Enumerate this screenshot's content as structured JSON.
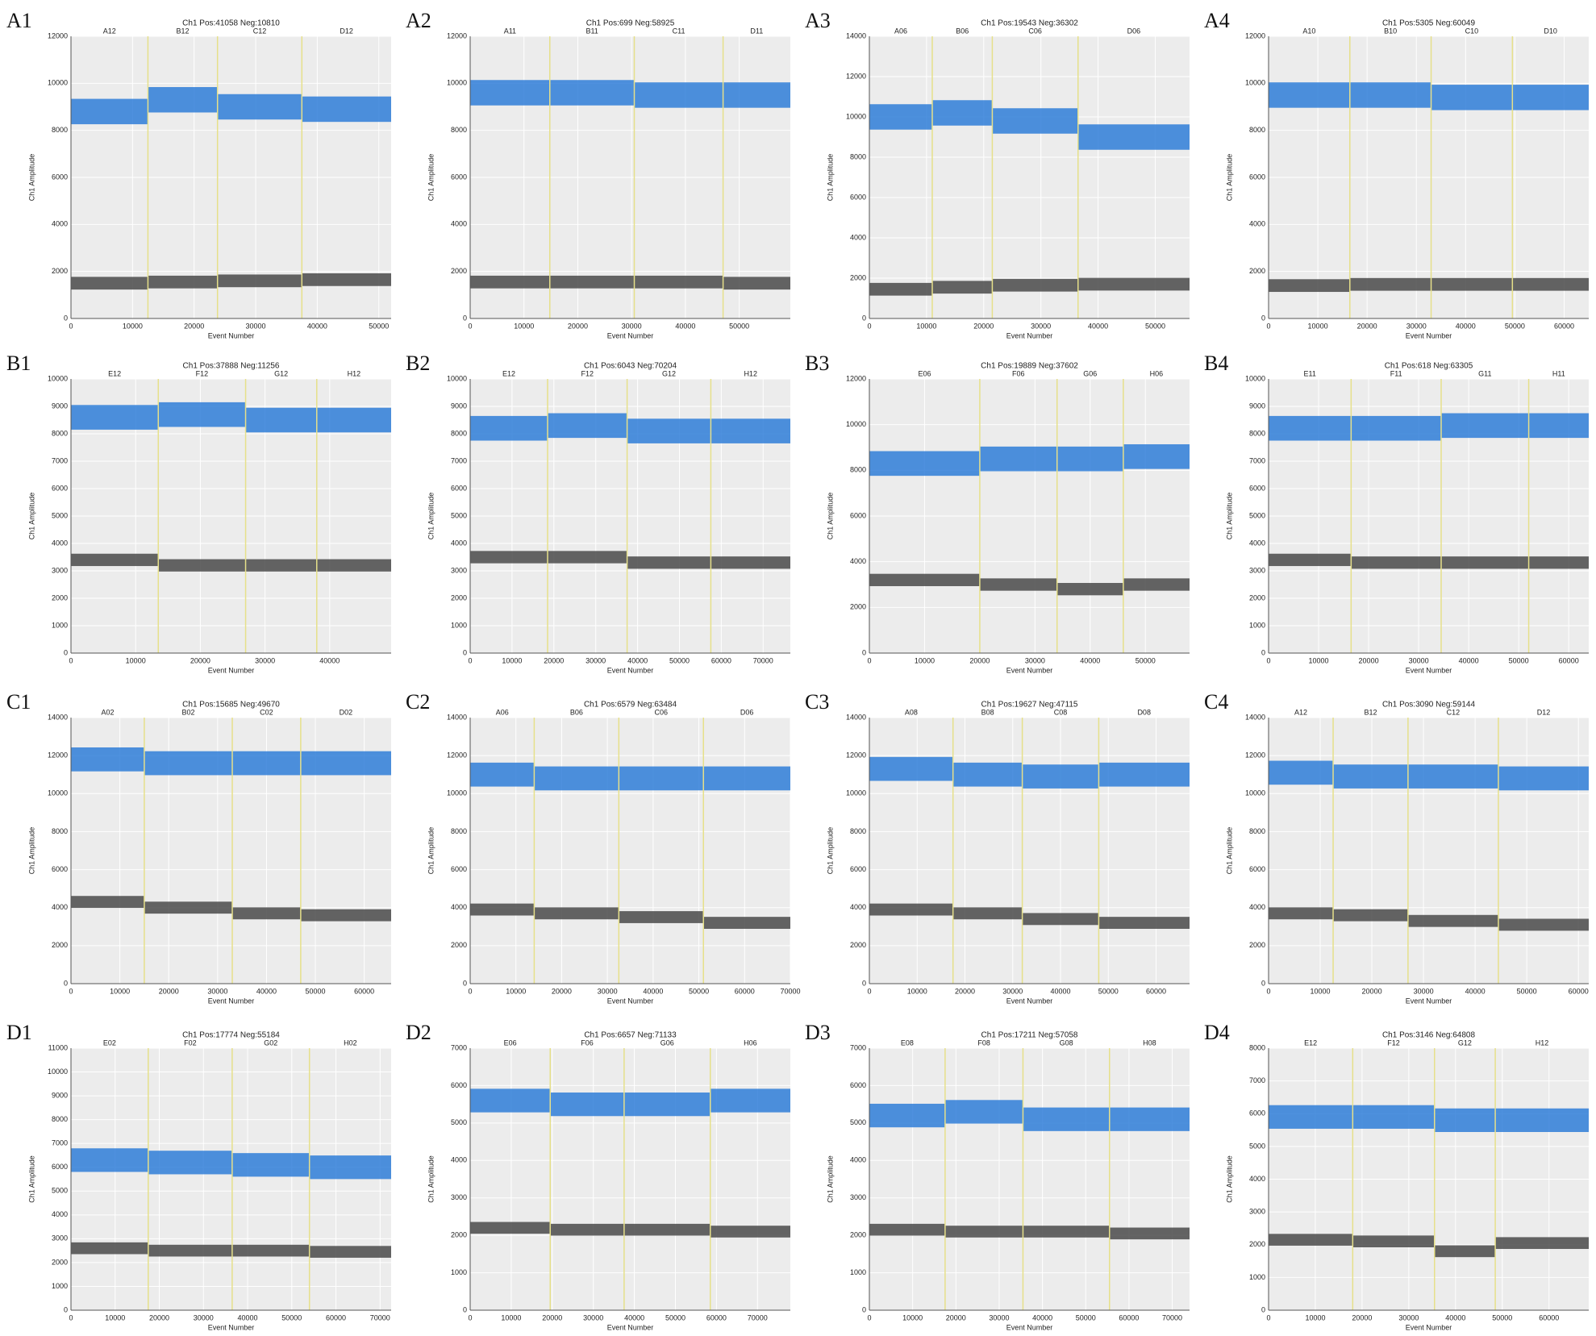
{
  "chart_data": [
    {
      "type": "droplet",
      "label": "A1",
      "title": "Ch1 Pos:41058 Neg:10810",
      "xlabel": "Event Number",
      "ylabel": "Ch1 Amplitude",
      "categories": [
        "A12",
        "B12",
        "C12",
        "D12"
      ],
      "well_edges": [
        0,
        12500,
        23800,
        37500,
        52000
      ],
      "series": [
        {
          "color": "#2f7ed8",
          "values": [
            8800,
            9300,
            9000,
            8900
          ]
        },
        {
          "color": "#4a4a4a",
          "values": [
            1500,
            1550,
            1600,
            1650
          ]
        }
      ],
      "xlim": [
        0,
        52000
      ],
      "xticks": [
        0,
        10000,
        20000,
        30000,
        40000,
        50000
      ],
      "ylim": [
        0,
        12000
      ],
      "yticks": [
        0,
        2000,
        4000,
        6000,
        8000,
        10000,
        12000
      ]
    },
    {
      "type": "droplet",
      "label": "A2",
      "title": "Ch1 Pos:699 Neg:58925",
      "xlabel": "Event Number",
      "ylabel": "Ch1 Amplitude",
      "categories": [
        "A11",
        "B11",
        "C11",
        "D11"
      ],
      "well_edges": [
        0,
        14800,
        30500,
        47000,
        59500
      ],
      "series": [
        {
          "color": "#2f7ed8",
          "values": [
            9600,
            9600,
            9500,
            9500
          ]
        },
        {
          "color": "#4a4a4a",
          "values": [
            1550,
            1550,
            1550,
            1500
          ]
        }
      ],
      "xlim": [
        0,
        59500
      ],
      "xticks": [
        0,
        10000,
        20000,
        30000,
        40000,
        50000
      ],
      "ylim": [
        0,
        12000
      ],
      "yticks": [
        0,
        2000,
        4000,
        6000,
        8000,
        10000,
        12000
      ]
    },
    {
      "type": "droplet",
      "label": "A3",
      "title": "Ch1 Pos:19543 Neg:36302",
      "xlabel": "Event Number",
      "ylabel": "Ch1 Amplitude",
      "categories": [
        "A06",
        "B06",
        "C06",
        "D06"
      ],
      "well_edges": [
        0,
        11000,
        21500,
        36500,
        56000
      ],
      "series": [
        {
          "color": "#2f7ed8",
          "values": [
            10000,
            10200,
            9800,
            9000
          ]
        },
        {
          "color": "#4a4a4a",
          "values": [
            1450,
            1550,
            1650,
            1700
          ]
        }
      ],
      "xlim": [
        0,
        56000
      ],
      "xticks": [
        0,
        10000,
        20000,
        30000,
        40000,
        50000
      ],
      "ylim": [
        0,
        14000
      ],
      "yticks": [
        0,
        2000,
        4000,
        6000,
        8000,
        10000,
        12000,
        14000
      ]
    },
    {
      "type": "droplet",
      "label": "A4",
      "title": "Ch1 Pos:5305 Neg:60049",
      "xlabel": "Event Number",
      "ylabel": "Ch1 Amplitude",
      "categories": [
        "A10",
        "B10",
        "C10",
        "D10"
      ],
      "well_edges": [
        0,
        16500,
        33000,
        49500,
        65000
      ],
      "series": [
        {
          "color": "#2f7ed8",
          "values": [
            9500,
            9500,
            9400,
            9400
          ]
        },
        {
          "color": "#4a4a4a",
          "values": [
            1400,
            1450,
            1450,
            1450
          ]
        }
      ],
      "xlim": [
        0,
        65000
      ],
      "xticks": [
        0,
        10000,
        20000,
        30000,
        40000,
        50000,
        60000
      ],
      "ylim": [
        0,
        12000
      ],
      "yticks": [
        0,
        2000,
        4000,
        6000,
        8000,
        10000,
        12000
      ]
    },
    {
      "type": "droplet",
      "label": "B1",
      "title": "Ch1 Pos:37888 Neg:11256",
      "xlabel": "Event Number",
      "ylabel": "Ch1 Amplitude",
      "categories": [
        "E12",
        "F12",
        "G12",
        "H12"
      ],
      "well_edges": [
        0,
        13500,
        27000,
        38000,
        49500
      ],
      "series": [
        {
          "color": "#2f7ed8",
          "values": [
            8600,
            8700,
            8500,
            8500
          ]
        },
        {
          "color": "#4a4a4a",
          "values": [
            3400,
            3200,
            3200,
            3200
          ]
        }
      ],
      "xlim": [
        0,
        49500
      ],
      "xticks": [
        0,
        10000,
        20000,
        30000,
        40000
      ],
      "ylim": [
        0,
        10000
      ],
      "yticks": [
        0,
        1000,
        2000,
        3000,
        4000,
        5000,
        6000,
        7000,
        8000,
        9000,
        10000
      ]
    },
    {
      "type": "droplet",
      "label": "B2",
      "title": "Ch1 Pos:6043 Neg:70204",
      "xlabel": "Event Number",
      "ylabel": "Ch1 Amplitude",
      "categories": [
        "E12",
        "F12",
        "G12",
        "H12"
      ],
      "well_edges": [
        0,
        18500,
        37500,
        57500,
        76500
      ],
      "series": [
        {
          "color": "#2f7ed8",
          "values": [
            8200,
            8300,
            8100,
            8100
          ]
        },
        {
          "color": "#4a4a4a",
          "values": [
            3500,
            3500,
            3300,
            3300
          ]
        }
      ],
      "xlim": [
        0,
        76500
      ],
      "xticks": [
        0,
        10000,
        20000,
        30000,
        40000,
        50000,
        60000,
        70000
      ],
      "ylim": [
        0,
        10000
      ],
      "yticks": [
        0,
        1000,
        2000,
        3000,
        4000,
        5000,
        6000,
        7000,
        8000,
        9000,
        10000
      ]
    },
    {
      "type": "droplet",
      "label": "B3",
      "title": "Ch1 Pos:19889 Neg:37602",
      "xlabel": "Event Number",
      "ylabel": "Ch1 Amplitude",
      "categories": [
        "E06",
        "F06",
        "G06",
        "H06"
      ],
      "well_edges": [
        0,
        20000,
        34000,
        46000,
        58000
      ],
      "series": [
        {
          "color": "#2f7ed8",
          "values": [
            8300,
            8500,
            8500,
            8600
          ]
        },
        {
          "color": "#4a4a4a",
          "values": [
            3200,
            3000,
            2800,
            3000
          ]
        }
      ],
      "xlim": [
        0,
        58000
      ],
      "xticks": [
        0,
        10000,
        20000,
        30000,
        40000,
        50000
      ],
      "ylim": [
        0,
        12000
      ],
      "yticks": [
        0,
        2000,
        4000,
        6000,
        8000,
        10000,
        12000
      ]
    },
    {
      "type": "droplet",
      "label": "B4",
      "title": "Ch1 Pos:618 Neg:63305",
      "xlabel": "Event Number",
      "ylabel": "Ch1 Amplitude",
      "categories": [
        "E11",
        "F11",
        "G11",
        "H11"
      ],
      "well_edges": [
        0,
        16500,
        34500,
        52000,
        64000
      ],
      "series": [
        {
          "color": "#2f7ed8",
          "values": [
            8200,
            8200,
            8300,
            8300
          ]
        },
        {
          "color": "#4a4a4a",
          "values": [
            3400,
            3300,
            3300,
            3300
          ]
        }
      ],
      "xlim": [
        0,
        64000
      ],
      "xticks": [
        0,
        10000,
        20000,
        30000,
        40000,
        50000,
        60000
      ],
      "ylim": [
        0,
        10000
      ],
      "yticks": [
        0,
        1000,
        2000,
        3000,
        4000,
        5000,
        6000,
        7000,
        8000,
        9000,
        10000
      ]
    },
    {
      "type": "droplet",
      "label": "C1",
      "title": "Ch1 Pos:15685 Neg:49670",
      "xlabel": "Event Number",
      "ylabel": "Ch1 Amplitude",
      "categories": [
        "A02",
        "B02",
        "C02",
        "D02"
      ],
      "well_edges": [
        0,
        15000,
        33000,
        47000,
        65500
      ],
      "series": [
        {
          "color": "#2f7ed8",
          "values": [
            11800,
            11600,
            11600,
            11600
          ]
        },
        {
          "color": "#4a4a4a",
          "values": [
            4300,
            4000,
            3700,
            3600
          ]
        }
      ],
      "xlim": [
        0,
        65500
      ],
      "xticks": [
        0,
        10000,
        20000,
        30000,
        40000,
        50000,
        60000
      ],
      "ylim": [
        0,
        14000
      ],
      "yticks": [
        0,
        2000,
        4000,
        6000,
        8000,
        10000,
        12000,
        14000
      ]
    },
    {
      "type": "droplet",
      "label": "C2",
      "title": "Ch1 Pos:6579 Neg:63484",
      "xlabel": "Event Number",
      "ylabel": "Ch1 Amplitude",
      "categories": [
        "A06",
        "B06",
        "C06",
        "D06"
      ],
      "well_edges": [
        0,
        14000,
        32500,
        51000,
        70000
      ],
      "series": [
        {
          "color": "#2f7ed8",
          "values": [
            11000,
            10800,
            10800,
            10800
          ]
        },
        {
          "color": "#4a4a4a",
          "values": [
            3900,
            3700,
            3500,
            3200
          ]
        }
      ],
      "xlim": [
        0,
        70000
      ],
      "xticks": [
        0,
        10000,
        20000,
        30000,
        40000,
        50000,
        60000,
        70000
      ],
      "ylim": [
        0,
        14000
      ],
      "yticks": [
        0,
        2000,
        4000,
        6000,
        8000,
        10000,
        12000,
        14000
      ]
    },
    {
      "type": "droplet",
      "label": "C3",
      "title": "Ch1 Pos:19627 Neg:47115",
      "xlabel": "Event Number",
      "ylabel": "Ch1 Amplitude",
      "categories": [
        "A08",
        "B08",
        "C08",
        "D08"
      ],
      "well_edges": [
        0,
        17500,
        32000,
        48000,
        67000
      ],
      "series": [
        {
          "color": "#2f7ed8",
          "values": [
            11300,
            11000,
            10900,
            11000
          ]
        },
        {
          "color": "#4a4a4a",
          "values": [
            3900,
            3700,
            3400,
            3200
          ]
        }
      ],
      "xlim": [
        0,
        67000
      ],
      "xticks": [
        0,
        10000,
        20000,
        30000,
        40000,
        50000,
        60000
      ],
      "ylim": [
        0,
        14000
      ],
      "yticks": [
        0,
        2000,
        4000,
        6000,
        8000,
        10000,
        12000,
        14000
      ]
    },
    {
      "type": "droplet",
      "label": "C4",
      "title": "Ch1 Pos:3090 Neg:59144",
      "xlabel": "Event Number",
      "ylabel": "Ch1 Amplitude",
      "categories": [
        "A12",
        "B12",
        "C12",
        "D12"
      ],
      "well_edges": [
        0,
        12500,
        27000,
        44500,
        62000
      ],
      "series": [
        {
          "color": "#2f7ed8",
          "values": [
            11100,
            10900,
            10900,
            10800
          ]
        },
        {
          "color": "#4a4a4a",
          "values": [
            3700,
            3600,
            3300,
            3100
          ]
        }
      ],
      "xlim": [
        0,
        62000
      ],
      "xticks": [
        0,
        10000,
        20000,
        30000,
        40000,
        50000,
        60000
      ],
      "ylim": [
        0,
        14000
      ],
      "yticks": [
        0,
        2000,
        4000,
        6000,
        8000,
        10000,
        12000,
        14000
      ]
    },
    {
      "type": "droplet",
      "label": "D1",
      "title": "Ch1 Pos:17774 Neg:55184",
      "xlabel": "Event Number",
      "ylabel": "Ch1 Amplitude",
      "categories": [
        "E02",
        "F02",
        "G02",
        "H02"
      ],
      "well_edges": [
        0,
        17500,
        36500,
        54000,
        72500
      ],
      "series": [
        {
          "color": "#2f7ed8",
          "values": [
            6300,
            6200,
            6100,
            6000
          ]
        },
        {
          "color": "#4a4a4a",
          "values": [
            2600,
            2500,
            2500,
            2450
          ]
        }
      ],
      "xlim": [
        0,
        72500
      ],
      "xticks": [
        0,
        10000,
        20000,
        30000,
        40000,
        50000,
        60000,
        70000
      ],
      "ylim": [
        0,
        11000
      ],
      "yticks": [
        0,
        1000,
        2000,
        3000,
        4000,
        5000,
        6000,
        7000,
        8000,
        9000,
        10000,
        11000
      ]
    },
    {
      "type": "droplet",
      "label": "D2",
      "title": "Ch1 Pos:6657 Neg:71133",
      "xlabel": "Event Number",
      "ylabel": "Ch1 Amplitude",
      "categories": [
        "E06",
        "F06",
        "G06",
        "H06"
      ],
      "well_edges": [
        0,
        19500,
        37500,
        58500,
        78000
      ],
      "series": [
        {
          "color": "#2f7ed8",
          "values": [
            5600,
            5500,
            5500,
            5600
          ]
        },
        {
          "color": "#4a4a4a",
          "values": [
            2200,
            2150,
            2150,
            2100
          ]
        }
      ],
      "xlim": [
        0,
        78000
      ],
      "xticks": [
        0,
        10000,
        20000,
        30000,
        40000,
        50000,
        60000,
        70000
      ],
      "ylim": [
        0,
        7000
      ],
      "yticks": [
        0,
        1000,
        2000,
        3000,
        4000,
        5000,
        6000,
        7000
      ]
    },
    {
      "type": "droplet",
      "label": "D3",
      "title": "Ch1 Pos:17211 Neg:57058",
      "xlabel": "Event Number",
      "ylabel": "Ch1 Amplitude",
      "categories": [
        "E08",
        "F08",
        "G08",
        "H08"
      ],
      "well_edges": [
        0,
        17500,
        35500,
        55500,
        74000
      ],
      "series": [
        {
          "color": "#2f7ed8",
          "values": [
            5200,
            5300,
            5100,
            5100
          ]
        },
        {
          "color": "#4a4a4a",
          "values": [
            2150,
            2100,
            2100,
            2050
          ]
        }
      ],
      "xlim": [
        0,
        74000
      ],
      "xticks": [
        0,
        10000,
        20000,
        30000,
        40000,
        50000,
        60000,
        70000
      ],
      "ylim": [
        0,
        7000
      ],
      "yticks": [
        0,
        1000,
        2000,
        3000,
        4000,
        5000,
        6000,
        7000
      ]
    },
    {
      "type": "droplet",
      "label": "D4",
      "title": "Ch1 Pos:3146 Neg:64808",
      "xlabel": "Event Number",
      "ylabel": "Ch1 Amplitude",
      "categories": [
        "E12",
        "F12",
        "G12",
        "H12"
      ],
      "well_edges": [
        0,
        18000,
        35500,
        48500,
        68500
      ],
      "series": [
        {
          "color": "#2f7ed8",
          "values": [
            5900,
            5900,
            5800,
            5800
          ]
        },
        {
          "color": "#4a4a4a",
          "values": [
            2150,
            2100,
            1800,
            2050
          ]
        }
      ],
      "xlim": [
        0,
        68500
      ],
      "xticks": [
        0,
        10000,
        20000,
        30000,
        40000,
        50000,
        60000
      ],
      "ylim": [
        0,
        8000
      ],
      "yticks": [
        0,
        1000,
        2000,
        3000,
        4000,
        5000,
        6000,
        7000,
        8000
      ]
    }
  ]
}
